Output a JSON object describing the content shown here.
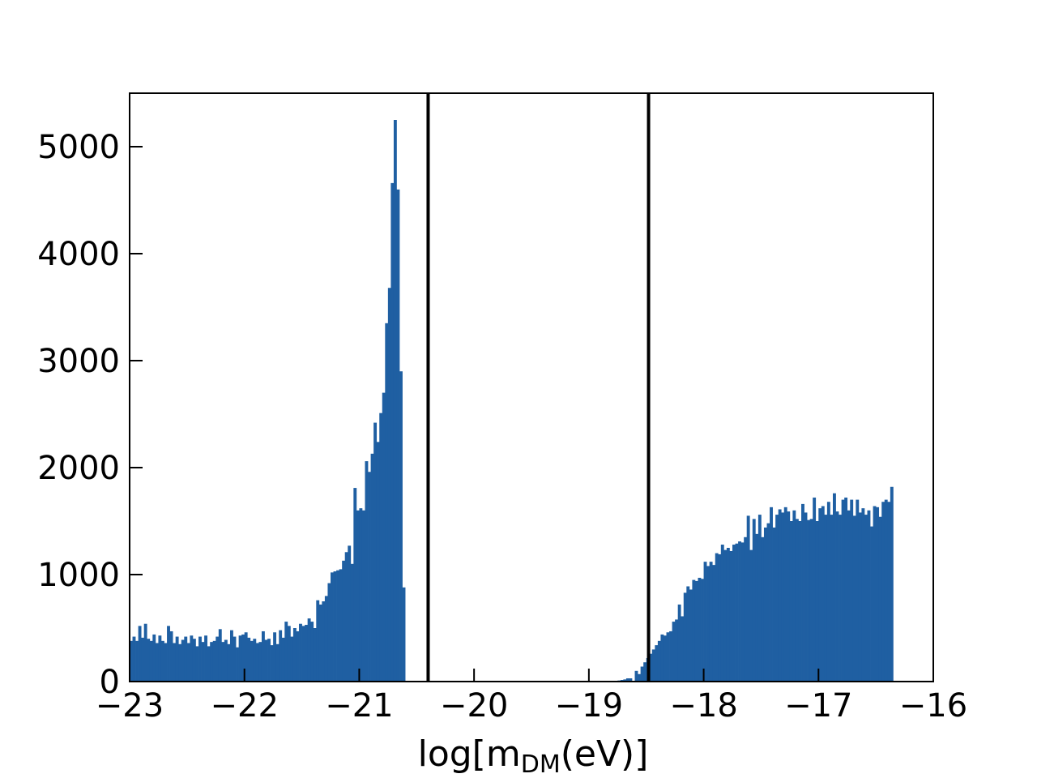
{
  "chart_data": {
    "type": "bar",
    "title": "",
    "xlabel": "log[m",
    "xlabel_sub": "DM",
    "xlabel_tail": "(eV)]",
    "ylabel": "",
    "xlim": [
      -23,
      -16
    ],
    "ylim": [
      0,
      5500
    ],
    "x_ticks": [
      -23,
      -22,
      -21,
      -20,
      -19,
      -18,
      -17,
      -16
    ],
    "x_tick_labels": [
      "−23",
      "−22",
      "−21",
      "−20",
      "−19",
      "−18",
      "−17",
      "−16"
    ],
    "y_ticks": [
      0,
      1000,
      2000,
      3000,
      4000,
      5000
    ],
    "y_tick_labels": [
      "0",
      "1000",
      "2000",
      "3000",
      "4000",
      "5000"
    ],
    "grid": false,
    "bar_color": "#1f5fa2",
    "vertical_lines": [
      -20.4,
      -18.48
    ],
    "vertical_line_color": "#000000",
    "bin_start": -23,
    "bin_width": 0.025,
    "values": [
      380,
      420,
      380,
      520,
      410,
      540,
      400,
      380,
      440,
      360,
      430,
      380,
      360,
      520,
      470,
      360,
      420,
      350,
      390,
      420,
      360,
      430,
      400,
      330,
      420,
      370,
      430,
      330,
      370,
      380,
      420,
      490,
      370,
      390,
      350,
      480,
      420,
      320,
      430,
      440,
      460,
      410,
      380,
      400,
      360,
      370,
      470,
      390,
      400,
      340,
      460,
      350,
      480,
      410,
      560,
      520,
      420,
      500,
      470,
      540,
      520,
      530,
      590,
      560,
      500,
      760,
      720,
      750,
      800,
      920,
      1020,
      1030,
      1040,
      1050,
      1130,
      1210,
      1270,
      1100,
      1810,
      1600,
      1620,
      1600,
      2060,
      1960,
      2130,
      2420,
      2240,
      2510,
      2700,
      3350,
      3680,
      4660,
      5250,
      4600,
      2900,
      880,
      0,
      0,
      0,
      0,
      0,
      0,
      0,
      0,
      0,
      0,
      0,
      0,
      0,
      0,
      0,
      0,
      0,
      0,
      0,
      0,
      0,
      0,
      0,
      0,
      0,
      0,
      0,
      0,
      0,
      0,
      0,
      0,
      0,
      0,
      0,
      0,
      0,
      0,
      0,
      0,
      0,
      0,
      0,
      0,
      0,
      0,
      0,
      0,
      0,
      0,
      0,
      0,
      0,
      0,
      0,
      0,
      0,
      0,
      0,
      0,
      0,
      0,
      0,
      0,
      0,
      0,
      0,
      0,
      0,
      0,
      0,
      0,
      0,
      0,
      10,
      15,
      20,
      30,
      30,
      0,
      100,
      70,
      140,
      180,
      220,
      260,
      300,
      340,
      380,
      440,
      430,
      460,
      470,
      560,
      580,
      720,
      610,
      830,
      890,
      860,
      950,
      940,
      970,
      960,
      1120,
      1080,
      1120,
      1090,
      1200,
      1190,
      1280,
      1230,
      1250,
      1220,
      1280,
      1290,
      1310,
      1300,
      1350,
      1550,
      1230,
      1520,
      1380,
      1560,
      1350,
      1440,
      1480,
      1630,
      1440,
      1560,
      1610,
      1580,
      1630,
      1590,
      1500,
      1600,
      1520,
      1500,
      1660,
      1580,
      1510,
      1520,
      1720,
      1500,
      1620,
      1640,
      1560,
      1680,
      1560,
      1760,
      1590,
      1560,
      1700,
      1720,
      1600,
      1700,
      1550,
      1700,
      1580,
      1620,
      1560,
      1600,
      1450,
      1640,
      1630,
      1540,
      1680,
      1700,
      1680,
      1820
    ]
  }
}
